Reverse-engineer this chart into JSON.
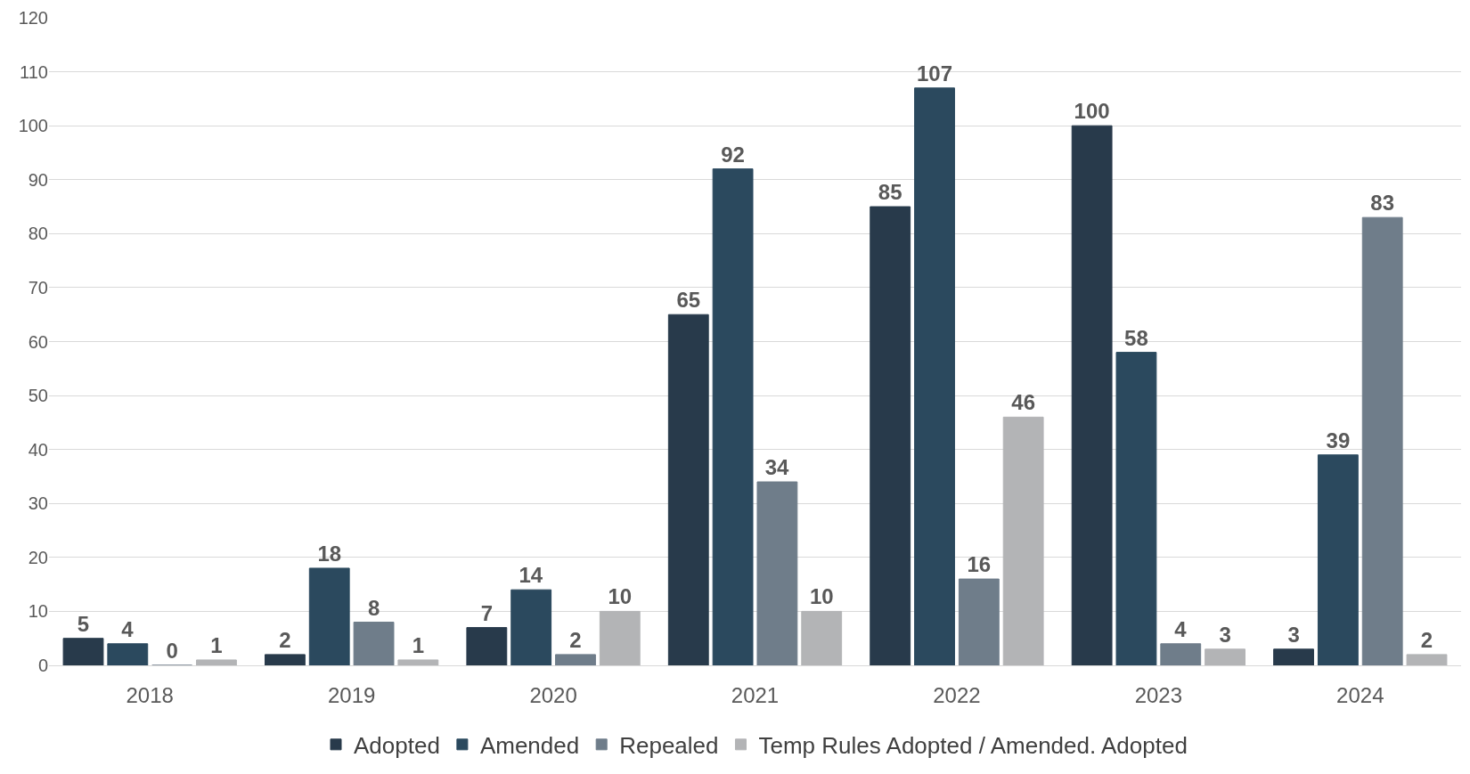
{
  "chart_data": {
    "type": "bar",
    "categories": [
      "2018",
      "2019",
      "2020",
      "2021",
      "2022",
      "2023",
      "2024"
    ],
    "series": [
      {
        "name": "Adopted",
        "color": "#283a4b",
        "values": [
          5,
          2,
          7,
          65,
          85,
          100,
          3
        ]
      },
      {
        "name": "Amended",
        "color": "#2b495e",
        "values": [
          4,
          18,
          14,
          92,
          107,
          58,
          39
        ]
      },
      {
        "name": "Repealed",
        "color": "#6f7d8a",
        "values": [
          0,
          8,
          2,
          34,
          16,
          4,
          83
        ]
      },
      {
        "name": "Temp Rules Adopted / Amended. Adopted",
        "color": "#b3b4b6",
        "values": [
          1,
          1,
          10,
          10,
          46,
          3,
          2
        ]
      }
    ],
    "ylim": [
      0,
      120
    ],
    "yticks": [
      0,
      10,
      20,
      30,
      40,
      50,
      60,
      70,
      80,
      90,
      100,
      110,
      120
    ],
    "grid": "y",
    "legend": "bottom",
    "data_labels": true
  }
}
